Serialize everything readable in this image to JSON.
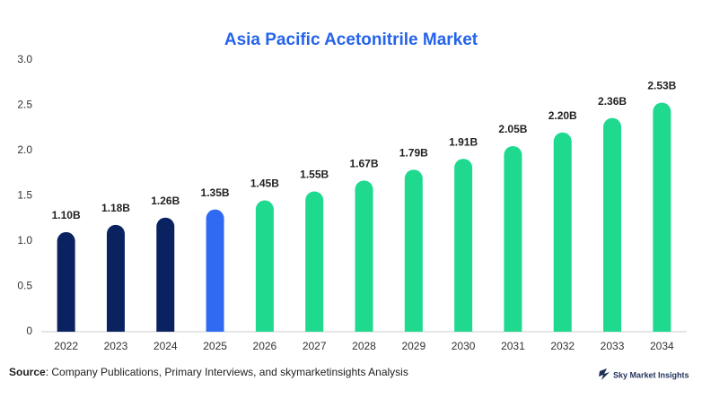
{
  "chart_data": {
    "type": "bar",
    "title": "Asia Pacific Acetonitrile Market",
    "categories": [
      "2022",
      "2023",
      "2024",
      "2025",
      "2026",
      "2027",
      "2028",
      "2029",
      "2030",
      "2031",
      "2032",
      "2033",
      "2034"
    ],
    "values": [
      1.1,
      1.18,
      1.26,
      1.35,
      1.45,
      1.55,
      1.67,
      1.79,
      1.91,
      2.05,
      2.2,
      2.36,
      2.53
    ],
    "value_labels": [
      "1.10B",
      "1.18B",
      "1.26B",
      "1.35B",
      "1.45B",
      "1.55B",
      "1.67B",
      "1.79B",
      "1.91B",
      "2.05B",
      "2.20B",
      "2.36B",
      "2.53B"
    ],
    "colors": [
      "#0b2260",
      "#0b2260",
      "#0b2260",
      "#2f6bf2",
      "#1fd98f",
      "#1fd98f",
      "#1fd98f",
      "#1fd98f",
      "#1fd98f",
      "#1fd98f",
      "#1fd98f",
      "#1fd98f",
      "#1fd98f"
    ],
    "ylim": [
      0,
      3
    ],
    "yticks": [
      0,
      {
        "value": 0.5,
        "label": "0.5"
      },
      {
        "value": 1,
        "label": "1.0"
      },
      {
        "value": 1.5,
        "label": "1.5"
      },
      {
        "value": 2,
        "label": "2.0"
      },
      {
        "value": 2.5,
        "label": "2.5"
      },
      {
        "value": 3,
        "label": "3.0"
      }
    ],
    "grid": false
  },
  "footer": {
    "source_label": "Source",
    "source_text": ": Company Publications, Primary Interviews, and skymarketinsights Analysis",
    "brand": "Sky Market Insights"
  }
}
